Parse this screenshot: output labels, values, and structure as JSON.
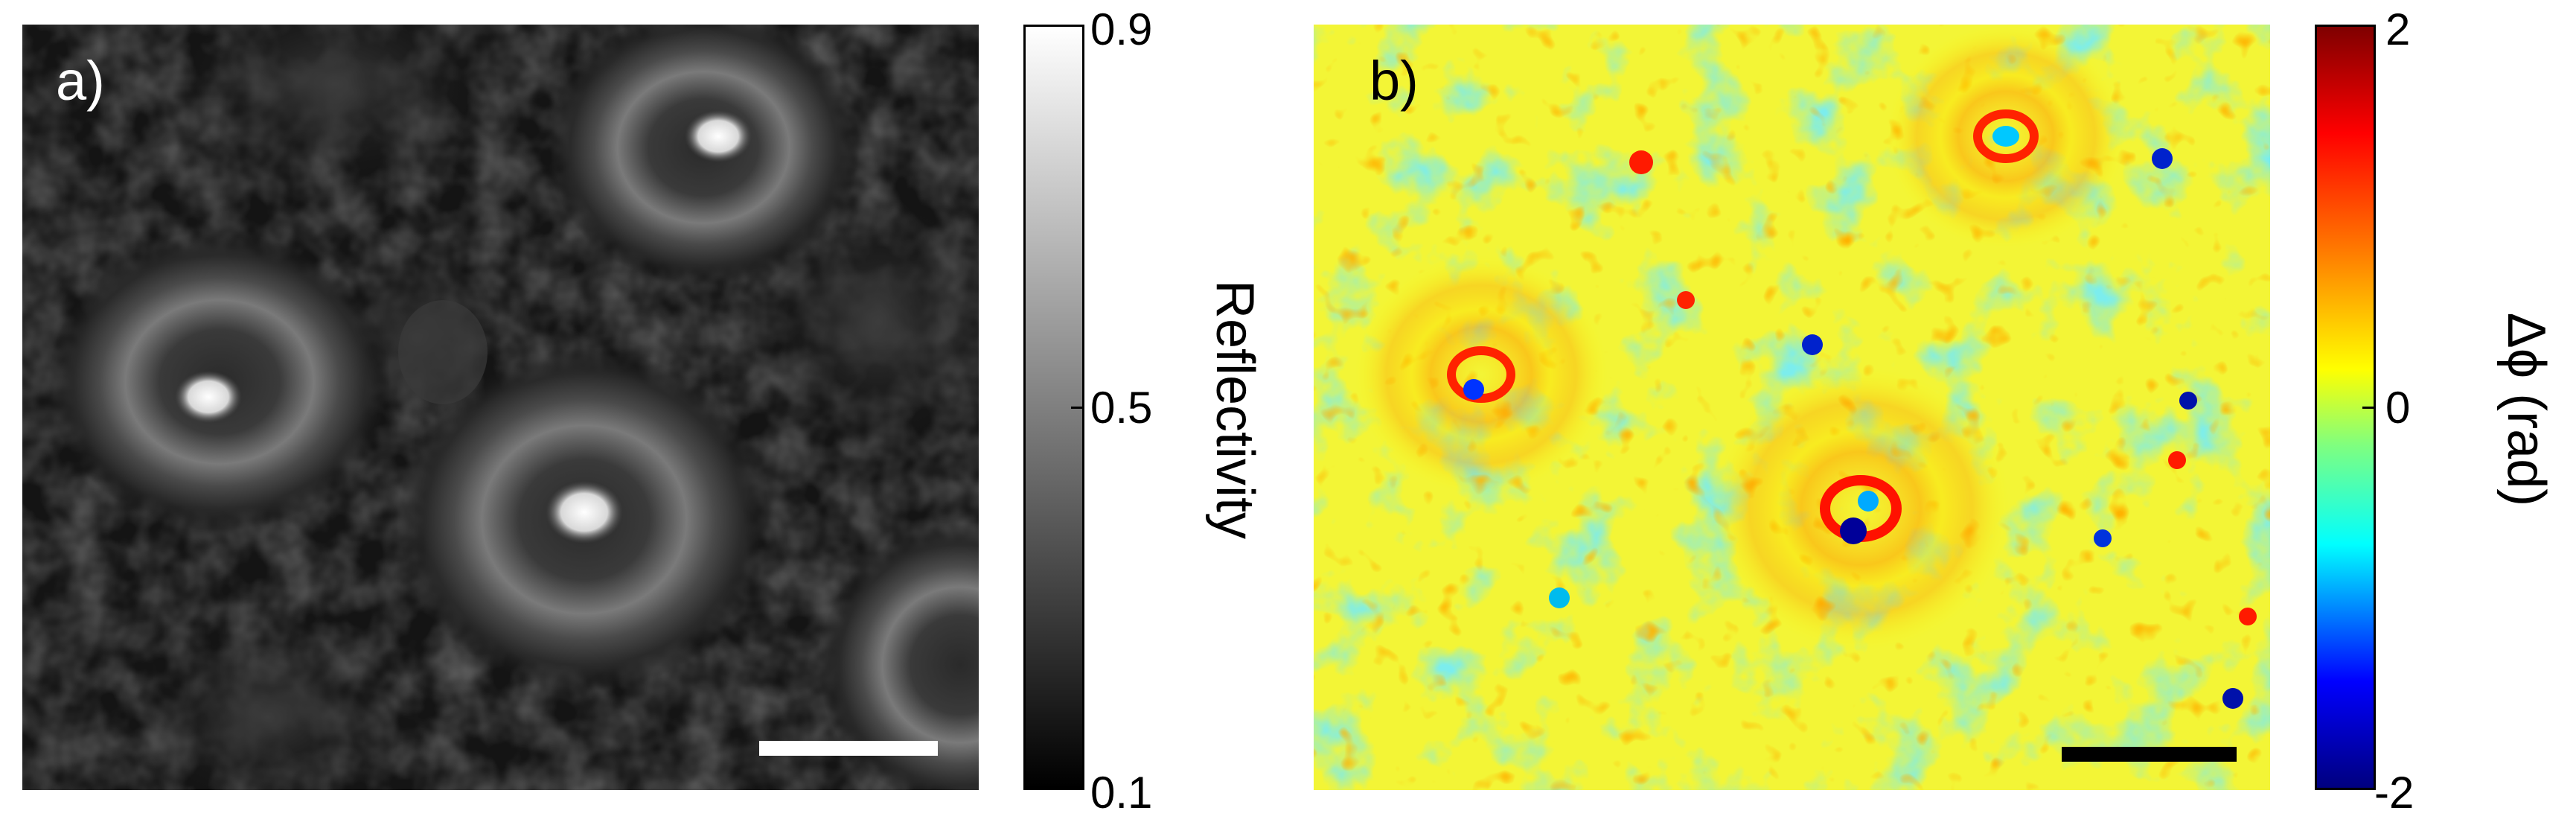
{
  "panel_a": {
    "label": "a)",
    "colorbar": {
      "title": "Reflectivity",
      "ticks": [
        "0.9",
        "0.5",
        "0.1"
      ],
      "colormap": [
        "#000000",
        "#ffffff"
      ]
    }
  },
  "panel_b": {
    "label": "b)",
    "colorbar": {
      "title": "Δϕ (rad)",
      "ticks": [
        "2",
        "0",
        "-2"
      ],
      "colormap": [
        "#00007f",
        "#0000ff",
        "#00ffff",
        "#7fff7f",
        "#ffff00",
        "#ff7f00",
        "#ff0000",
        "#7f0000"
      ]
    }
  },
  "colors": {
    "scalebar_a": "#ffffff",
    "scalebar_b": "#000000"
  }
}
